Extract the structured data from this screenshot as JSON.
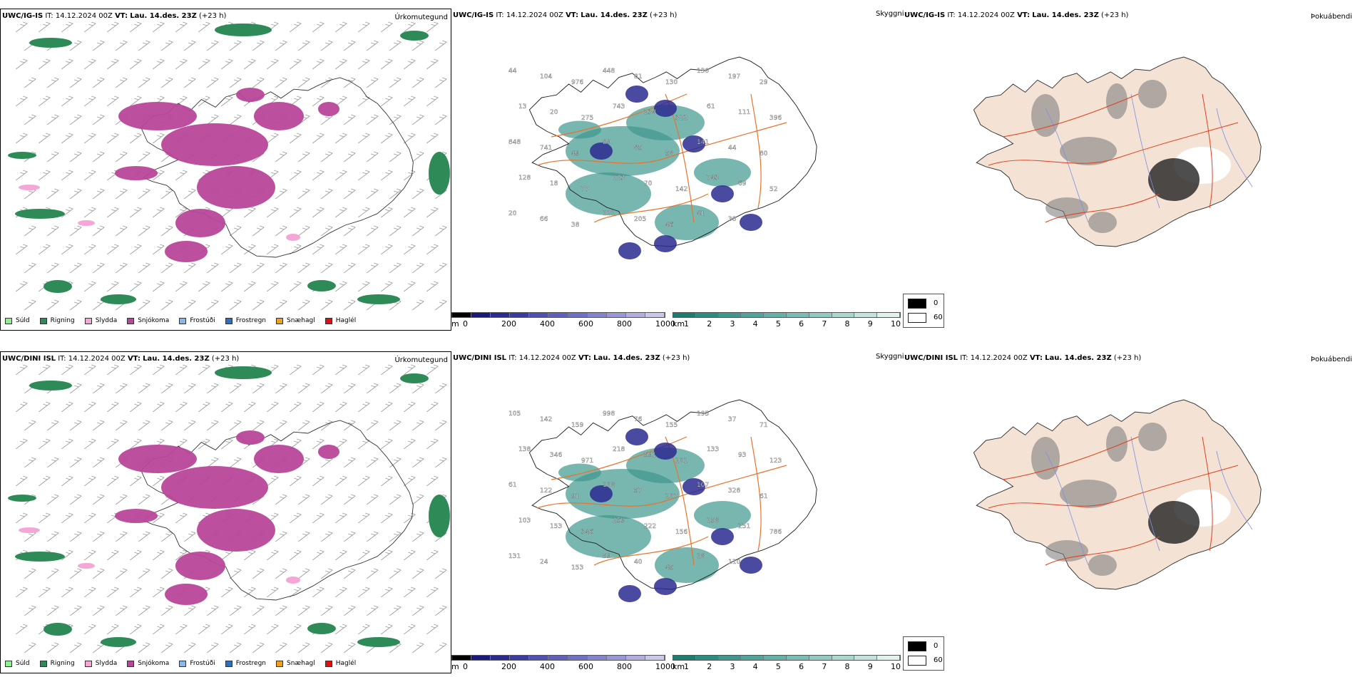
{
  "rows": [
    {
      "model": "UWC/IG-IS",
      "it_label": "IT:",
      "it_value": "14.12.2024 00Z",
      "vt_label": "VT:",
      "vt_value": "Lau. 14.des. 23Z",
      "lead": "(+23 h)",
      "header_second": "UWC/IG-IS IT: 14.12.2024 00Z VT: Lau. 14.des. 23Z (+23 h)",
      "header_third": "UWC/IG-IS IT: 14.12.2024 00Z VT: Lau. 14.des. 23Z (+23 h)",
      "visibility_values": [
        "44",
        "104",
        "976",
        "448",
        "81",
        "130",
        "130",
        "197",
        "29",
        "13",
        "20",
        "275",
        "743",
        "234",
        "322",
        "61",
        "111",
        "396",
        "848",
        "741",
        "49",
        "89",
        "85",
        "58",
        "141",
        "44",
        "80",
        "128",
        "18",
        "77",
        "123",
        "70",
        "142",
        "743",
        "69",
        "52",
        "20",
        "66",
        "38",
        "121",
        "205",
        "46",
        "41",
        "38"
      ]
    },
    {
      "model": "UWC/DINI ISL",
      "it_label": "IT:",
      "it_value": "14.12.2024 00Z",
      "vt_label": "VT:",
      "vt_value": "Lau. 14.des. 23Z",
      "lead": "(+23 h)",
      "header_second": "UWC/DINI ISL IT: 14.12.2024 00Z VT: Lau. 14.des. 23Z (+23 h)",
      "header_third": "UWC/DINI ISL IT: 14.12.2024 00Z VT: Lau. 14.des. 23Z (+23 h)",
      "visibility_values": [
        "105",
        "142",
        "159",
        "998",
        "76",
        "155",
        "195",
        "37",
        "71",
        "138",
        "346",
        "971",
        "218",
        "591",
        "101",
        "133",
        "93",
        "123",
        "61",
        "122",
        "91",
        "108",
        "57",
        "207",
        "107",
        "328",
        "61",
        "103",
        "153",
        "346",
        "259",
        "222",
        "156",
        "158",
        "251",
        "786",
        "131",
        "24",
        "153",
        "59",
        "40",
        "45",
        "18",
        "110"
      ]
    }
  ],
  "panel_titles": {
    "precip": "Úrkomutegund",
    "visibility": "Skyggni",
    "cloud": "Þokuábendi"
  },
  "precip_legend": [
    {
      "label": "Súld",
      "color": "#90ee90"
    },
    {
      "label": "Rigning",
      "color": "#2e8b57"
    },
    {
      "label": "Slydda",
      "color": "#f4a6d7"
    },
    {
      "label": "Snjókoma",
      "color": "#b8479a"
    },
    {
      "label": "Frostúði",
      "color": "#87b8e8"
    },
    {
      "label": "Frostregn",
      "color": "#2f6fc0"
    },
    {
      "label": "Snæhagl",
      "color": "#f0a020"
    },
    {
      "label": "Haglél",
      "color": "#e01010"
    }
  ],
  "visibility_scale_m": {
    "unit": "m",
    "ticks": [
      "0",
      "200",
      "400",
      "600",
      "800",
      "1000"
    ],
    "colors": [
      "#000000",
      "#1a1a7a",
      "#2a2a90",
      "#3b3ba0",
      "#5050b0",
      "#6060bb",
      "#7070c4",
      "#8484cc",
      "#9898d6",
      "#b0b0e0",
      "#c8c8ea"
    ]
  },
  "visibility_scale_km": {
    "unit": "km",
    "ticks": [
      "1",
      "2",
      "3",
      "4",
      "5",
      "6",
      "7",
      "8",
      "9",
      "10"
    ],
    "colors": [
      "#1f7a70",
      "#2e8a80",
      "#3f978e",
      "#52a39a",
      "#66b0a8",
      "#7bbdb5",
      "#92cac3",
      "#aad6d0",
      "#c3e3de",
      "#e0f1ee"
    ]
  },
  "cloud_legend": [
    {
      "label": "0",
      "color": "#000000"
    },
    {
      "label": "60",
      "color": "#ffffff"
    }
  ],
  "colors": {
    "snow": "#b8479a",
    "rain": "#2e8b57",
    "sleet": "#f4a6d7",
    "teal": "#3f978e",
    "roads": "#e8742a",
    "land": "#f4e2d4",
    "rivers": "#7a90e8"
  }
}
